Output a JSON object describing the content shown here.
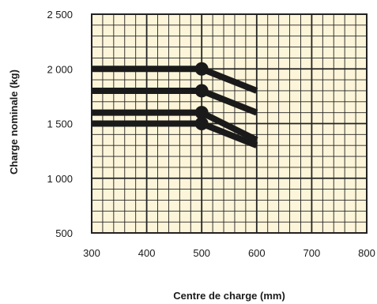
{
  "chart_data": {
    "type": "line",
    "title": "",
    "xlabel": "Centre de charge (mm)",
    "ylabel": "Charge nominale (kg)",
    "xlim": [
      300,
      800
    ],
    "ylim": [
      500,
      2500
    ],
    "x_ticks": [
      300,
      400,
      500,
      600,
      700,
      800
    ],
    "x_tick_labels": [
      "300",
      "400",
      "500",
      "600",
      "700",
      "800"
    ],
    "y_ticks": [
      500,
      1000,
      1500,
      2000,
      2500
    ],
    "y_tick_labels": [
      "500",
      "1 000",
      "1 500",
      "2 000",
      "2 500"
    ],
    "grid": true,
    "minor_grid_step": {
      "x": 20,
      "y": 100
    },
    "major_grid_step": {
      "x": 100,
      "y": 500
    },
    "series": [
      {
        "x": [
          300,
          500,
          600
        ],
        "y": [
          2000,
          2000,
          1800
        ]
      },
      {
        "x": [
          300,
          500,
          600
        ],
        "y": [
          1800,
          1800,
          1600
        ]
      },
      {
        "x": [
          300,
          500,
          600
        ],
        "y": [
          1600,
          1600,
          1350
        ]
      },
      {
        "x": [
          300,
          500,
          600
        ],
        "y": [
          1500,
          1500,
          1300
        ]
      }
    ],
    "colors": {
      "background": "#fdf5d9",
      "grid": "#222222",
      "line": "#1a1a1a",
      "marker": "#1a1a1a"
    }
  }
}
